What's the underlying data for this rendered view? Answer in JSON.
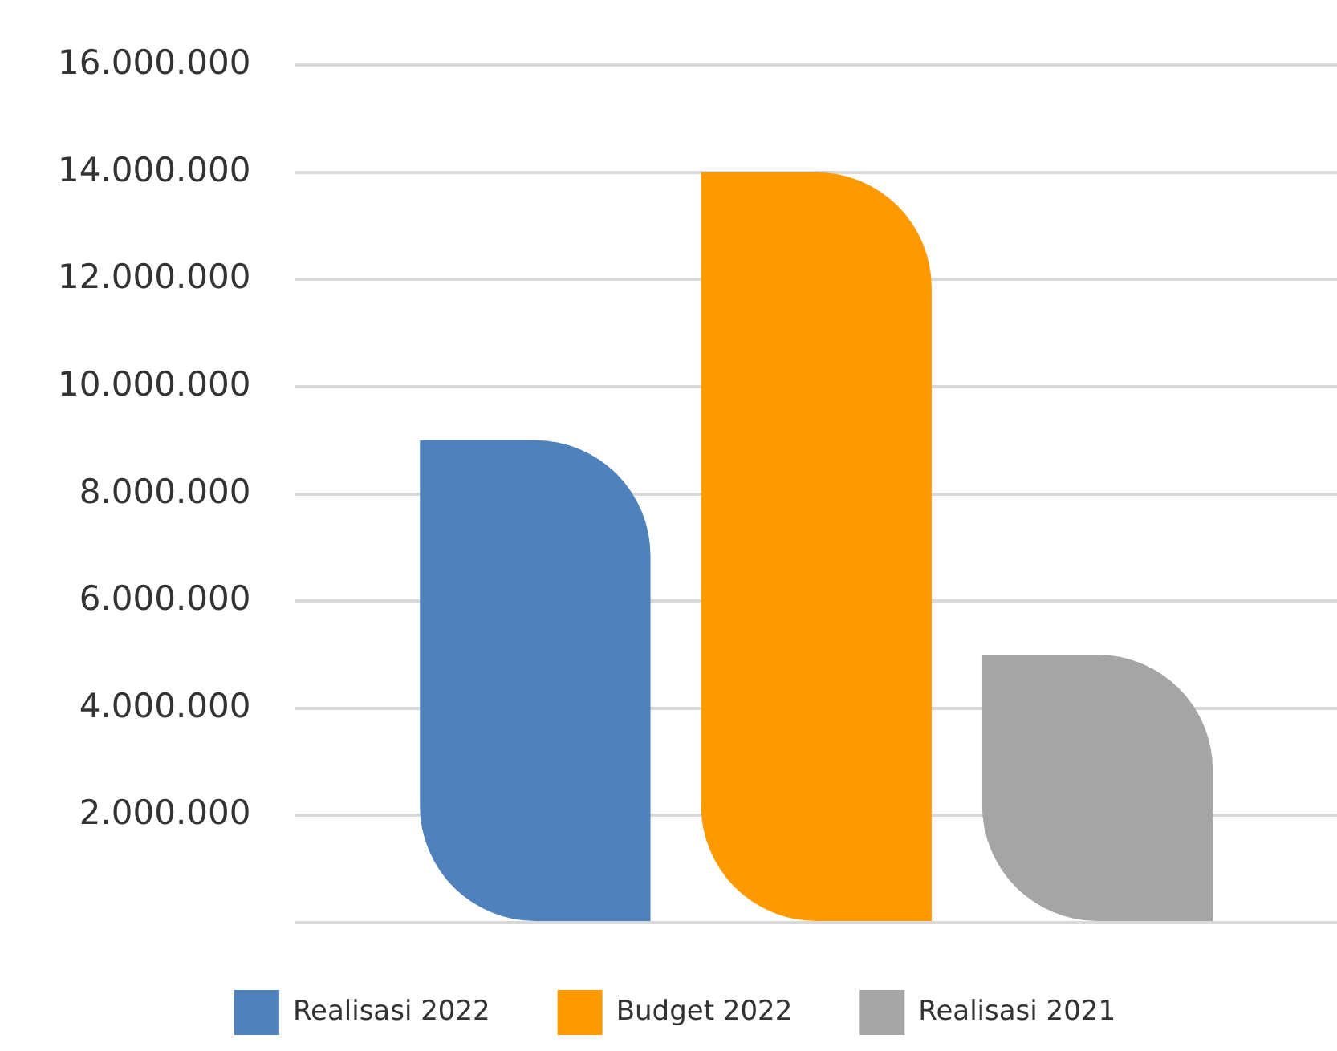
{
  "chart_data": {
    "type": "bar",
    "categories": [
      null
    ],
    "series": [
      {
        "name": "Realisasi 2022",
        "color": "#4f81bd",
        "values": [
          9000000
        ]
      },
      {
        "name": "Budget 2022",
        "color": "#ff9900",
        "values": [
          14000000
        ]
      },
      {
        "name": "Realisasi 2021",
        "color": "#a5a5a5",
        "values": [
          5000000
        ]
      }
    ],
    "ylim": [
      0,
      16000000
    ],
    "yticks": [
      {
        "value": 0,
        "label": null
      },
      {
        "value": 2000000,
        "label": "2.000.000"
      },
      {
        "value": 4000000,
        "label": "4.000.000"
      },
      {
        "value": 6000000,
        "label": "6.000.000"
      },
      {
        "value": 8000000,
        "label": "8.000.000"
      },
      {
        "value": 10000000,
        "label": "10.000.000"
      },
      {
        "value": 12000000,
        "label": "12.000.000"
      },
      {
        "value": 14000000,
        "label": "14.000.000"
      },
      {
        "value": 16000000,
        "label": "16.000.000"
      }
    ],
    "grid": "y",
    "legend": "bottom",
    "tick_labels": "y"
  }
}
